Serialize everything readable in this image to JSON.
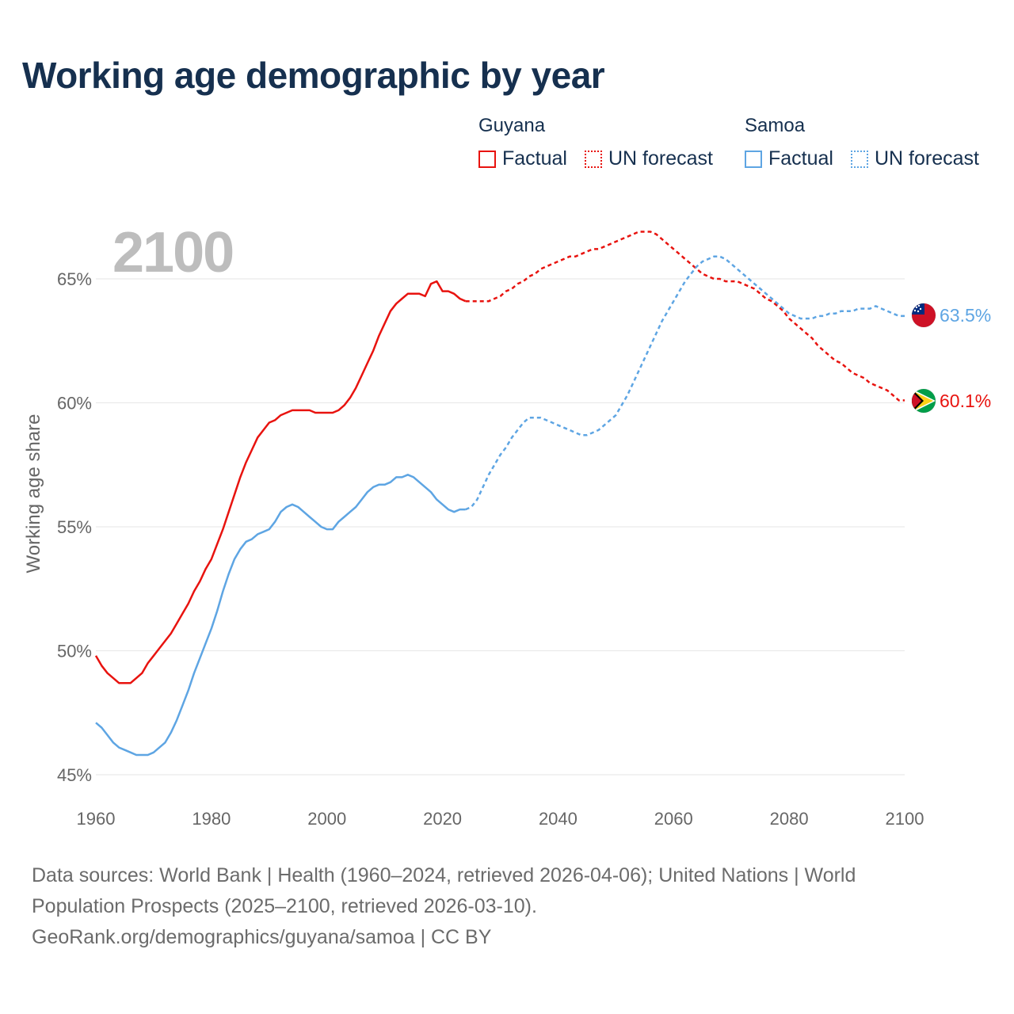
{
  "title": "Working age demographic by year",
  "legend": {
    "groups": [
      {
        "name": "Guyana",
        "color": "#e8130f",
        "factual_label": "Factual",
        "forecast_label": "UN forecast"
      },
      {
        "name": "Samoa",
        "color": "#5ea5e3",
        "factual_label": "Factual",
        "forecast_label": "UN forecast"
      }
    ]
  },
  "year_overlay": "2100",
  "sources": {
    "line1": "Data sources: World Bank | Health (1960–2024, retrieved 2026-04-06); United Nations | World Population Prospects (2025–2100, retrieved 2026-03-10).",
    "line2": "GeoRank.org/demographics/guyana/samoa | CC BY"
  },
  "chart_data": {
    "type": "line",
    "title": "Working age demographic by year",
    "xlabel": "",
    "ylabel": "Working age share",
    "xlim": [
      1960,
      2100
    ],
    "ylim": [
      45,
      67.5
    ],
    "x_ticks": [
      1960,
      1980,
      2000,
      2020,
      2040,
      2060,
      2080,
      2100
    ],
    "y_ticks": [
      45,
      50,
      55,
      60,
      65
    ],
    "y_tick_labels": [
      "45%",
      "50%",
      "55%",
      "60%",
      "65%"
    ],
    "grid": true,
    "series": [
      {
        "name": "Guyana",
        "color": "#e8130f",
        "end_label": "60.1%",
        "flag_icon": "guyana-flag-icon",
        "factual": [
          [
            1960,
            49.8
          ],
          [
            1961,
            49.4
          ],
          [
            1962,
            49.1
          ],
          [
            1963,
            48.9
          ],
          [
            1964,
            48.7
          ],
          [
            1965,
            48.7
          ],
          [
            1966,
            48.7
          ],
          [
            1967,
            48.9
          ],
          [
            1968,
            49.1
          ],
          [
            1969,
            49.5
          ],
          [
            1970,
            49.8
          ],
          [
            1971,
            50.1
          ],
          [
            1972,
            50.4
          ],
          [
            1973,
            50.7
          ],
          [
            1974,
            51.1
          ],
          [
            1975,
            51.5
          ],
          [
            1976,
            51.9
          ],
          [
            1977,
            52.4
          ],
          [
            1978,
            52.8
          ],
          [
            1979,
            53.3
          ],
          [
            1980,
            53.7
          ],
          [
            1981,
            54.3
          ],
          [
            1982,
            54.9
          ],
          [
            1983,
            55.6
          ],
          [
            1984,
            56.3
          ],
          [
            1985,
            57.0
          ],
          [
            1986,
            57.6
          ],
          [
            1987,
            58.1
          ],
          [
            1988,
            58.6
          ],
          [
            1989,
            58.9
          ],
          [
            1990,
            59.2
          ],
          [
            1991,
            59.3
          ],
          [
            1992,
            59.5
          ],
          [
            1993,
            59.6
          ],
          [
            1994,
            59.7
          ],
          [
            1995,
            59.7
          ],
          [
            1996,
            59.7
          ],
          [
            1997,
            59.7
          ],
          [
            1998,
            59.6
          ],
          [
            1999,
            59.6
          ],
          [
            2000,
            59.6
          ],
          [
            2001,
            59.6
          ],
          [
            2002,
            59.7
          ],
          [
            2003,
            59.9
          ],
          [
            2004,
            60.2
          ],
          [
            2005,
            60.6
          ],
          [
            2006,
            61.1
          ],
          [
            2007,
            61.6
          ],
          [
            2008,
            62.1
          ],
          [
            2009,
            62.7
          ],
          [
            2010,
            63.2
          ],
          [
            2011,
            63.7
          ],
          [
            2012,
            64.0
          ],
          [
            2013,
            64.2
          ],
          [
            2014,
            64.4
          ],
          [
            2015,
            64.4
          ],
          [
            2016,
            64.4
          ],
          [
            2017,
            64.3
          ],
          [
            2018,
            64.8
          ],
          [
            2019,
            64.9
          ],
          [
            2020,
            64.5
          ],
          [
            2021,
            64.5
          ],
          [
            2022,
            64.4
          ],
          [
            2023,
            64.2
          ],
          [
            2024,
            64.1
          ]
        ],
        "forecast": [
          [
            2024,
            64.1
          ],
          [
            2025,
            64.1
          ],
          [
            2026,
            64.1
          ],
          [
            2027,
            64.1
          ],
          [
            2028,
            64.1
          ],
          [
            2029,
            64.2
          ],
          [
            2030,
            64.3
          ],
          [
            2031,
            64.5
          ],
          [
            2032,
            64.6
          ],
          [
            2033,
            64.8
          ],
          [
            2034,
            64.9
          ],
          [
            2035,
            65.1
          ],
          [
            2036,
            65.2
          ],
          [
            2037,
            65.4
          ],
          [
            2038,
            65.5
          ],
          [
            2039,
            65.6
          ],
          [
            2040,
            65.7
          ],
          [
            2041,
            65.8
          ],
          [
            2042,
            65.9
          ],
          [
            2043,
            65.9
          ],
          [
            2044,
            66.0
          ],
          [
            2045,
            66.1
          ],
          [
            2046,
            66.2
          ],
          [
            2047,
            66.2
          ],
          [
            2048,
            66.3
          ],
          [
            2049,
            66.4
          ],
          [
            2050,
            66.5
          ],
          [
            2051,
            66.6
          ],
          [
            2052,
            66.7
          ],
          [
            2053,
            66.8
          ],
          [
            2054,
            66.9
          ],
          [
            2055,
            66.9
          ],
          [
            2056,
            66.9
          ],
          [
            2057,
            66.8
          ],
          [
            2058,
            66.6
          ],
          [
            2059,
            66.4
          ],
          [
            2060,
            66.2
          ],
          [
            2061,
            66.0
          ],
          [
            2062,
            65.8
          ],
          [
            2063,
            65.6
          ],
          [
            2064,
            65.4
          ],
          [
            2065,
            65.2
          ],
          [
            2066,
            65.1
          ],
          [
            2067,
            65.0
          ],
          [
            2068,
            65.0
          ],
          [
            2069,
            64.9
          ],
          [
            2070,
            64.9
          ],
          [
            2071,
            64.9
          ],
          [
            2072,
            64.8
          ],
          [
            2073,
            64.7
          ],
          [
            2074,
            64.6
          ],
          [
            2075,
            64.4
          ],
          [
            2076,
            64.2
          ],
          [
            2077,
            64.1
          ],
          [
            2078,
            63.9
          ],
          [
            2079,
            63.7
          ],
          [
            2080,
            63.4
          ],
          [
            2081,
            63.2
          ],
          [
            2082,
            63.0
          ],
          [
            2083,
            62.8
          ],
          [
            2084,
            62.6
          ],
          [
            2085,
            62.3
          ],
          [
            2086,
            62.1
          ],
          [
            2087,
            61.9
          ],
          [
            2088,
            61.7
          ],
          [
            2089,
            61.6
          ],
          [
            2090,
            61.4
          ],
          [
            2091,
            61.2
          ],
          [
            2092,
            61.1
          ],
          [
            2093,
            61.0
          ],
          [
            2094,
            60.8
          ],
          [
            2095,
            60.7
          ],
          [
            2096,
            60.6
          ],
          [
            2097,
            60.5
          ],
          [
            2098,
            60.3
          ],
          [
            2099,
            60.1
          ],
          [
            2100,
            60.1
          ]
        ]
      },
      {
        "name": "Samoa",
        "color": "#5ea5e3",
        "end_label": "63.5%",
        "flag_icon": "samoa-flag-icon",
        "factual": [
          [
            1960,
            47.1
          ],
          [
            1961,
            46.9
          ],
          [
            1962,
            46.6
          ],
          [
            1963,
            46.3
          ],
          [
            1964,
            46.1
          ],
          [
            1965,
            46.0
          ],
          [
            1966,
            45.9
          ],
          [
            1967,
            45.8
          ],
          [
            1968,
            45.8
          ],
          [
            1969,
            45.8
          ],
          [
            1970,
            45.9
          ],
          [
            1971,
            46.1
          ],
          [
            1972,
            46.3
          ],
          [
            1973,
            46.7
          ],
          [
            1974,
            47.2
          ],
          [
            1975,
            47.8
          ],
          [
            1976,
            48.4
          ],
          [
            1977,
            49.1
          ],
          [
            1978,
            49.7
          ],
          [
            1979,
            50.3
          ],
          [
            1980,
            50.9
          ],
          [
            1981,
            51.6
          ],
          [
            1982,
            52.4
          ],
          [
            1983,
            53.1
          ],
          [
            1984,
            53.7
          ],
          [
            1985,
            54.1
          ],
          [
            1986,
            54.4
          ],
          [
            1987,
            54.5
          ],
          [
            1988,
            54.7
          ],
          [
            1989,
            54.8
          ],
          [
            1990,
            54.9
          ],
          [
            1991,
            55.2
          ],
          [
            1992,
            55.6
          ],
          [
            1993,
            55.8
          ],
          [
            1994,
            55.9
          ],
          [
            1995,
            55.8
          ],
          [
            1996,
            55.6
          ],
          [
            1997,
            55.4
          ],
          [
            1998,
            55.2
          ],
          [
            1999,
            55.0
          ],
          [
            2000,
            54.9
          ],
          [
            2001,
            54.9
          ],
          [
            2002,
            55.2
          ],
          [
            2003,
            55.4
          ],
          [
            2004,
            55.6
          ],
          [
            2005,
            55.8
          ],
          [
            2006,
            56.1
          ],
          [
            2007,
            56.4
          ],
          [
            2008,
            56.6
          ],
          [
            2009,
            56.7
          ],
          [
            2010,
            56.7
          ],
          [
            2011,
            56.8
          ],
          [
            2012,
            57.0
          ],
          [
            2013,
            57.0
          ],
          [
            2014,
            57.1
          ],
          [
            2015,
            57.0
          ],
          [
            2016,
            56.8
          ],
          [
            2017,
            56.6
          ],
          [
            2018,
            56.4
          ],
          [
            2019,
            56.1
          ],
          [
            2020,
            55.9
          ],
          [
            2021,
            55.7
          ],
          [
            2022,
            55.6
          ],
          [
            2023,
            55.7
          ],
          [
            2024,
            55.7
          ]
        ],
        "forecast": [
          [
            2024,
            55.7
          ],
          [
            2025,
            55.8
          ],
          [
            2026,
            56.1
          ],
          [
            2027,
            56.6
          ],
          [
            2028,
            57.1
          ],
          [
            2029,
            57.5
          ],
          [
            2030,
            57.9
          ],
          [
            2031,
            58.2
          ],
          [
            2032,
            58.6
          ],
          [
            2033,
            58.9
          ],
          [
            2034,
            59.2
          ],
          [
            2035,
            59.4
          ],
          [
            2036,
            59.4
          ],
          [
            2037,
            59.4
          ],
          [
            2038,
            59.3
          ],
          [
            2039,
            59.2
          ],
          [
            2040,
            59.1
          ],
          [
            2041,
            59.0
          ],
          [
            2042,
            58.9
          ],
          [
            2043,
            58.8
          ],
          [
            2044,
            58.7
          ],
          [
            2045,
            58.7
          ],
          [
            2046,
            58.8
          ],
          [
            2047,
            58.9
          ],
          [
            2048,
            59.1
          ],
          [
            2049,
            59.3
          ],
          [
            2050,
            59.5
          ],
          [
            2051,
            59.9
          ],
          [
            2052,
            60.3
          ],
          [
            2053,
            60.8
          ],
          [
            2054,
            61.3
          ],
          [
            2055,
            61.8
          ],
          [
            2056,
            62.3
          ],
          [
            2057,
            62.8
          ],
          [
            2058,
            63.3
          ],
          [
            2059,
            63.7
          ],
          [
            2060,
            64.1
          ],
          [
            2061,
            64.5
          ],
          [
            2062,
            64.9
          ],
          [
            2063,
            65.2
          ],
          [
            2064,
            65.5
          ],
          [
            2065,
            65.7
          ],
          [
            2066,
            65.8
          ],
          [
            2067,
            65.9
          ],
          [
            2068,
            65.9
          ],
          [
            2069,
            65.8
          ],
          [
            2070,
            65.6
          ],
          [
            2071,
            65.4
          ],
          [
            2072,
            65.2
          ],
          [
            2073,
            65.0
          ],
          [
            2074,
            64.8
          ],
          [
            2075,
            64.6
          ],
          [
            2076,
            64.4
          ],
          [
            2077,
            64.2
          ],
          [
            2078,
            64.0
          ],
          [
            2079,
            63.8
          ],
          [
            2080,
            63.6
          ],
          [
            2081,
            63.5
          ],
          [
            2082,
            63.4
          ],
          [
            2083,
            63.4
          ],
          [
            2084,
            63.4
          ],
          [
            2085,
            63.5
          ],
          [
            2086,
            63.5
          ],
          [
            2087,
            63.6
          ],
          [
            2088,
            63.6
          ],
          [
            2089,
            63.7
          ],
          [
            2090,
            63.7
          ],
          [
            2091,
            63.7
          ],
          [
            2092,
            63.8
          ],
          [
            2093,
            63.8
          ],
          [
            2094,
            63.8
          ],
          [
            2095,
            63.9
          ],
          [
            2096,
            63.8
          ],
          [
            2097,
            63.7
          ],
          [
            2098,
            63.6
          ],
          [
            2099,
            63.5
          ],
          [
            2100,
            63.5
          ]
        ]
      }
    ]
  }
}
